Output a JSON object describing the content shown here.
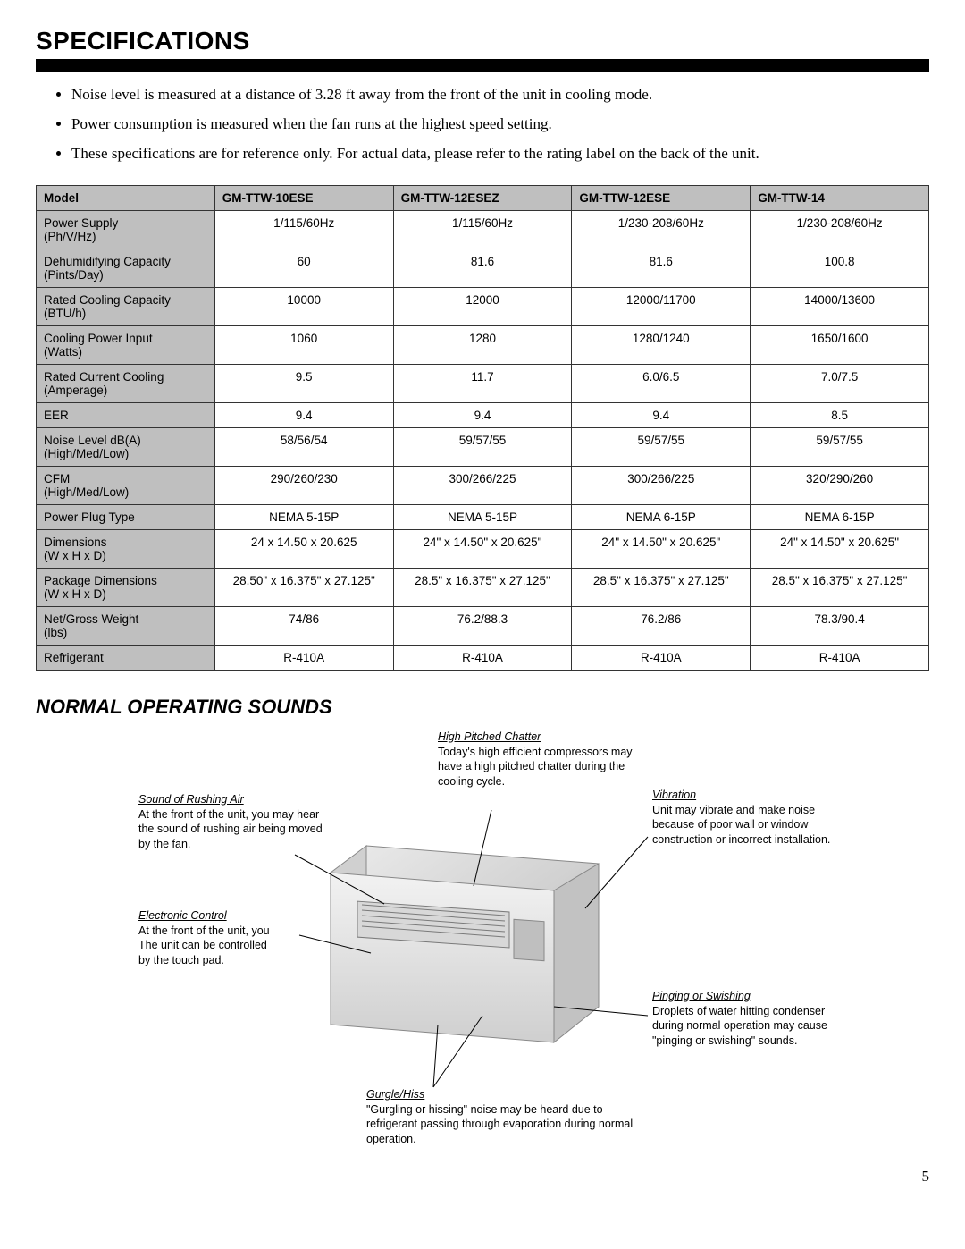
{
  "title": "SPECIFICATIONS",
  "bullets": [
    "Noise level is measured at a distance of 3.28 ft away from the front of the unit in cooling mode.",
    "Power consumption is measured when the fan runs at the highest speed setting.",
    "These specifications are for reference only. For actual data, please refer to the rating label on the back of the unit."
  ],
  "table": {
    "header": [
      "Model",
      "GM-TTW-10ESE",
      "GM-TTW-12ESEZ",
      "GM-TTW-12ESE",
      "GM-TTW-14"
    ],
    "rows": [
      [
        "Power Supply (Ph/V/Hz)",
        "1/115/60Hz",
        "1/115/60Hz",
        "1/230-208/60Hz",
        "1/230-208/60Hz"
      ],
      [
        "Dehumidifying Capacity (Pints/Day)",
        "60",
        "81.6",
        "81.6",
        "100.8"
      ],
      [
        "Rated Cooling Capacity (BTU/h)",
        "10000",
        "12000",
        "12000/11700",
        "14000/13600"
      ],
      [
        "Cooling Power Input (Watts)",
        "1060",
        "1280",
        "1280/1240",
        "1650/1600"
      ],
      [
        "Rated Current Cooling (Amperage)",
        "9.5",
        "11.7",
        "6.0/6.5",
        "7.0/7.5"
      ],
      [
        "EER",
        "9.4",
        "9.4",
        "9.4",
        "8.5"
      ],
      [
        "Noise Level dB(A) (High/Med/Low)",
        "58/56/54",
        "59/57/55",
        "59/57/55",
        "59/57/55"
      ],
      [
        "CFM (High/Med/Low)",
        "290/260/230",
        "300/266/225",
        "300/266/225",
        "320/290/260"
      ],
      [
        "Power Plug Type",
        "NEMA 5-15P",
        "NEMA 5-15P",
        "NEMA 6-15P",
        "NEMA 6-15P"
      ],
      [
        "Dimensions (W x H x D)",
        "24 x 14.50 x 20.625",
        "24\" x 14.50\" x 20.625\"",
        "24\" x 14.50\" x 20.625\"",
        "24\" x 14.50\" x 20.625\""
      ],
      [
        "Package Dimensions (W x H x D)",
        "28.50\" x 16.375\" x 27.125\"",
        "28.5\" x 16.375\" x 27.125\"",
        "28.5\" x 16.375\" x 27.125\"",
        "28.5\" x 16.375\" x 27.125\""
      ],
      [
        "Net/Gross Weight (lbs)",
        "74/86",
        "76.2/88.3",
        "76.2/86",
        "78.3/90.4"
      ],
      [
        "Refrigerant",
        "R-410A",
        "R-410A",
        "R-410A",
        "R-410A"
      ]
    ]
  },
  "soundsTitle": "NORMAL OPERATING SOUNDS",
  "callouts": {
    "chatter": {
      "title": "High Pitched Chatter",
      "body": "Today's high efficient compressors may have a high pitched chatter during the cooling cycle."
    },
    "rushing": {
      "title": "Sound of Rushing Air",
      "body": "At the front of the unit, you may hear the sound of rushing air being moved by the fan."
    },
    "vibration": {
      "title": "Vibration",
      "body": "Unit may vibrate and make noise because of poor wall or window construction or incorrect installation."
    },
    "electronic": {
      "title": "Electronic Control",
      "body1": "At the front of the unit, you",
      "body2": "The unit can be controlled",
      "body3": "by the touch pad."
    },
    "pinging": {
      "title": "Pinging or Swishing",
      "body": "Droplets of water hitting condenser during normal operation may cause \"pinging or swishing\" sounds."
    },
    "gurgle": {
      "title": "Gurgle/Hiss",
      "body": "\"Gurgling or hissing\" noise may be heard due to refrigerant passing through evaporation during normal operation."
    }
  },
  "pageNumber": "5",
  "colors": {
    "headerBg": "#bfbfbf"
  }
}
